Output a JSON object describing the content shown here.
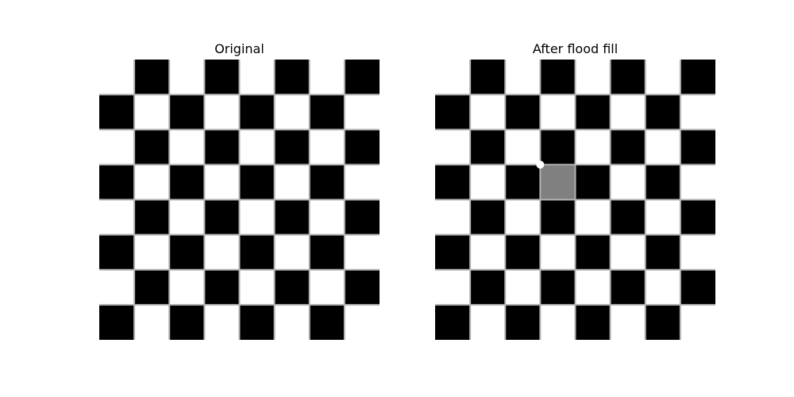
{
  "panels": {
    "left": {
      "title": "Original"
    },
    "right": {
      "title": "After flood fill"
    }
  },
  "board": {
    "rows": 8,
    "cols": 8,
    "dark_color": "#000000",
    "light_color": "#ffffff",
    "edge_color": "#b3b3b3"
  },
  "fill": {
    "row": 3,
    "col": 3,
    "color": "#808080"
  },
  "seed_marker": {
    "color": "#ffffff"
  }
}
